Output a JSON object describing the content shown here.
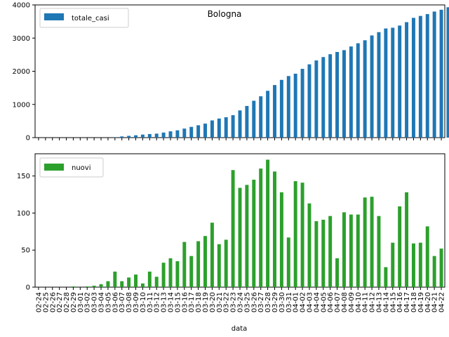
{
  "chart_data": [
    {
      "type": "bar",
      "title": "Bologna",
      "series": [
        {
          "name": "totale_casi",
          "color": "#1f77b4",
          "values": [
            0,
            0,
            0,
            0,
            0,
            0,
            0,
            0,
            0,
            0,
            0,
            15,
            36,
            53,
            70,
            91,
            107,
            120,
            152,
            189,
            220,
            272,
            324,
            372,
            422,
            518,
            575,
            614,
            676,
            820,
            954,
            1111,
            1246,
            1411,
            1585,
            1740,
            1856,
            1927,
            2073,
            2209,
            2326,
            2428,
            2514,
            2582,
            2637,
            2747,
            2844,
            2935,
            3080,
            3179,
            3290,
            3312,
            3378,
            3480,
            3610,
            3668,
            3723,
            3800,
            3854,
            3930
          ]
        }
      ],
      "ylim": [
        0,
        4000
      ],
      "yticks": [
        0,
        1000,
        2000,
        3000,
        4000
      ],
      "legend": "top-left",
      "grid": false
    },
    {
      "type": "bar",
      "title": "",
      "xlabel": "data",
      "categories": [
        "02-24",
        "02-25",
        "02-26",
        "02-27",
        "02-28",
        "02-29",
        "03-01",
        "03-02",
        "03-03",
        "03-04",
        "03-05",
        "03-06",
        "03-07",
        "03-08",
        "03-09",
        "03-10",
        "03-11",
        "03-12",
        "03-13",
        "03-14",
        "03-15",
        "03-16",
        "03-17",
        "03-18",
        "03-19",
        "03-20",
        "03-21",
        "03-22",
        "03-23",
        "03-24",
        "03-25",
        "03-26",
        "03-27",
        "03-28",
        "03-29",
        "03-30",
        "03-31",
        "04-01",
        "04-02",
        "04-03",
        "04-04",
        "04-05",
        "04-06",
        "04-07",
        "04-08",
        "04-09",
        "04-10",
        "04-11",
        "04-12",
        "04-13",
        "04-14",
        "04-15",
        "04-16",
        "04-17",
        "04-18",
        "04-19",
        "04-20",
        "04-21",
        "04-22"
      ],
      "series": [
        {
          "name": "nuovi",
          "color": "#2ca02c",
          "values": [
            0,
            0,
            0,
            0,
            0,
            1,
            0,
            1,
            2,
            4,
            8,
            21,
            8,
            13,
            17,
            5,
            21,
            14,
            33,
            39,
            35,
            61,
            42,
            62,
            69,
            87,
            58,
            64,
            158,
            134,
            138,
            145,
            160,
            172,
            156,
            128,
            67,
            143,
            141,
            113,
            89,
            91,
            96,
            39,
            101,
            98,
            98,
            121,
            122,
            96,
            27,
            60,
            109,
            128,
            59,
            60,
            82,
            42,
            52
          ]
        }
      ],
      "ylim": [
        0,
        180
      ],
      "yticks": [
        0,
        50,
        100,
        150
      ],
      "legend": "top-left",
      "grid": false
    }
  ]
}
